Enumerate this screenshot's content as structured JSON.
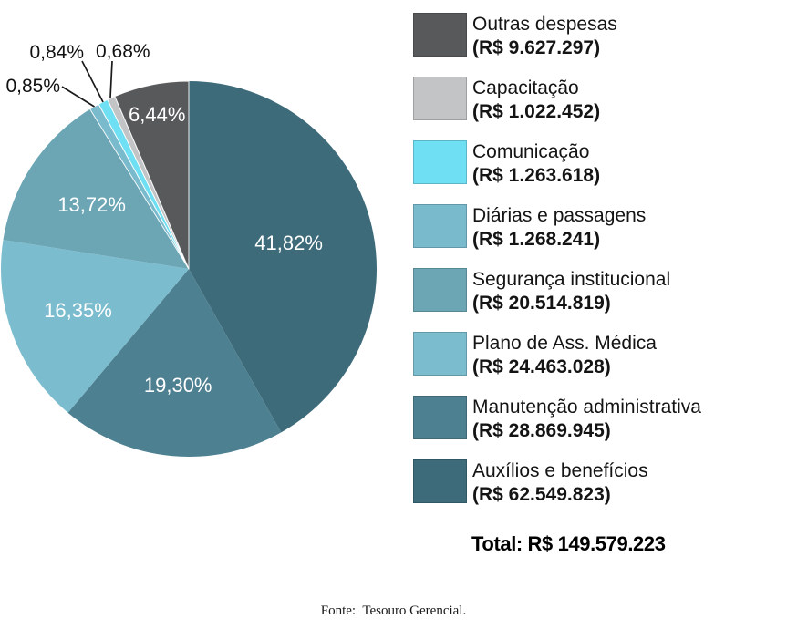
{
  "chart_data": {
    "type": "pie",
    "direction": "clockwise",
    "start_angle_deg": 0,
    "legend_position": "right",
    "total_label": "Total: R$ 149.579.223",
    "source": "Fonte:  Tesouro Gerencial.",
    "total_value": 149579223,
    "slices": [
      {
        "id": "auxilios",
        "label": "Auxílios e benefícios",
        "amount_label": "(R$ 62.549.823)",
        "amount": 62549823,
        "pct": 41.82,
        "pct_label": "41,82%",
        "color": "#3E6B7A"
      },
      {
        "id": "manutencao",
        "label": "Manutenção administrativa",
        "amount_label": "(R$ 28.869.945)",
        "amount": 28869945,
        "pct": 19.3,
        "pct_label": "19,30%",
        "color": "#4D8192"
      },
      {
        "id": "plano",
        "label": "Plano de Ass. Médica",
        "amount_label": "(R$ 24.463.028)",
        "amount": 24463028,
        "pct": 16.35,
        "pct_label": "16,35%",
        "color": "#7BBCCE"
      },
      {
        "id": "seguranca",
        "label": "Segurança institucional",
        "amount_label": "(R$ 20.514.819)",
        "amount": 20514819,
        "pct": 13.72,
        "pct_label": "13,72%",
        "color": "#6CA6B5"
      },
      {
        "id": "diarias",
        "label": "Diárias e passagens",
        "amount_label": "(R$ 1.268.241)",
        "amount": 1268241,
        "pct": 0.85,
        "pct_label": "0,85%",
        "color": "#79BACD"
      },
      {
        "id": "comunicacao",
        "label": "Comunicação",
        "amount_label": "(R$ 1.263.618)",
        "amount": 1263618,
        "pct": 0.84,
        "pct_label": "0,84%",
        "color": "#6FE0F3"
      },
      {
        "id": "capacitacao",
        "label": "Capacitação",
        "amount_label": "(R$ 1.022.452)",
        "amount": 1022452,
        "pct": 0.68,
        "pct_label": "0,68%",
        "color": "#C3C4C6"
      },
      {
        "id": "outras",
        "label": "Outras despesas",
        "amount_label": "(R$ 9.627.297)",
        "amount": 9627297,
        "pct": 6.44,
        "pct_label": "6,44%",
        "color": "#58595B"
      }
    ]
  },
  "legend": {
    "order": [
      7,
      6,
      5,
      4,
      3,
      2,
      1,
      0
    ]
  }
}
